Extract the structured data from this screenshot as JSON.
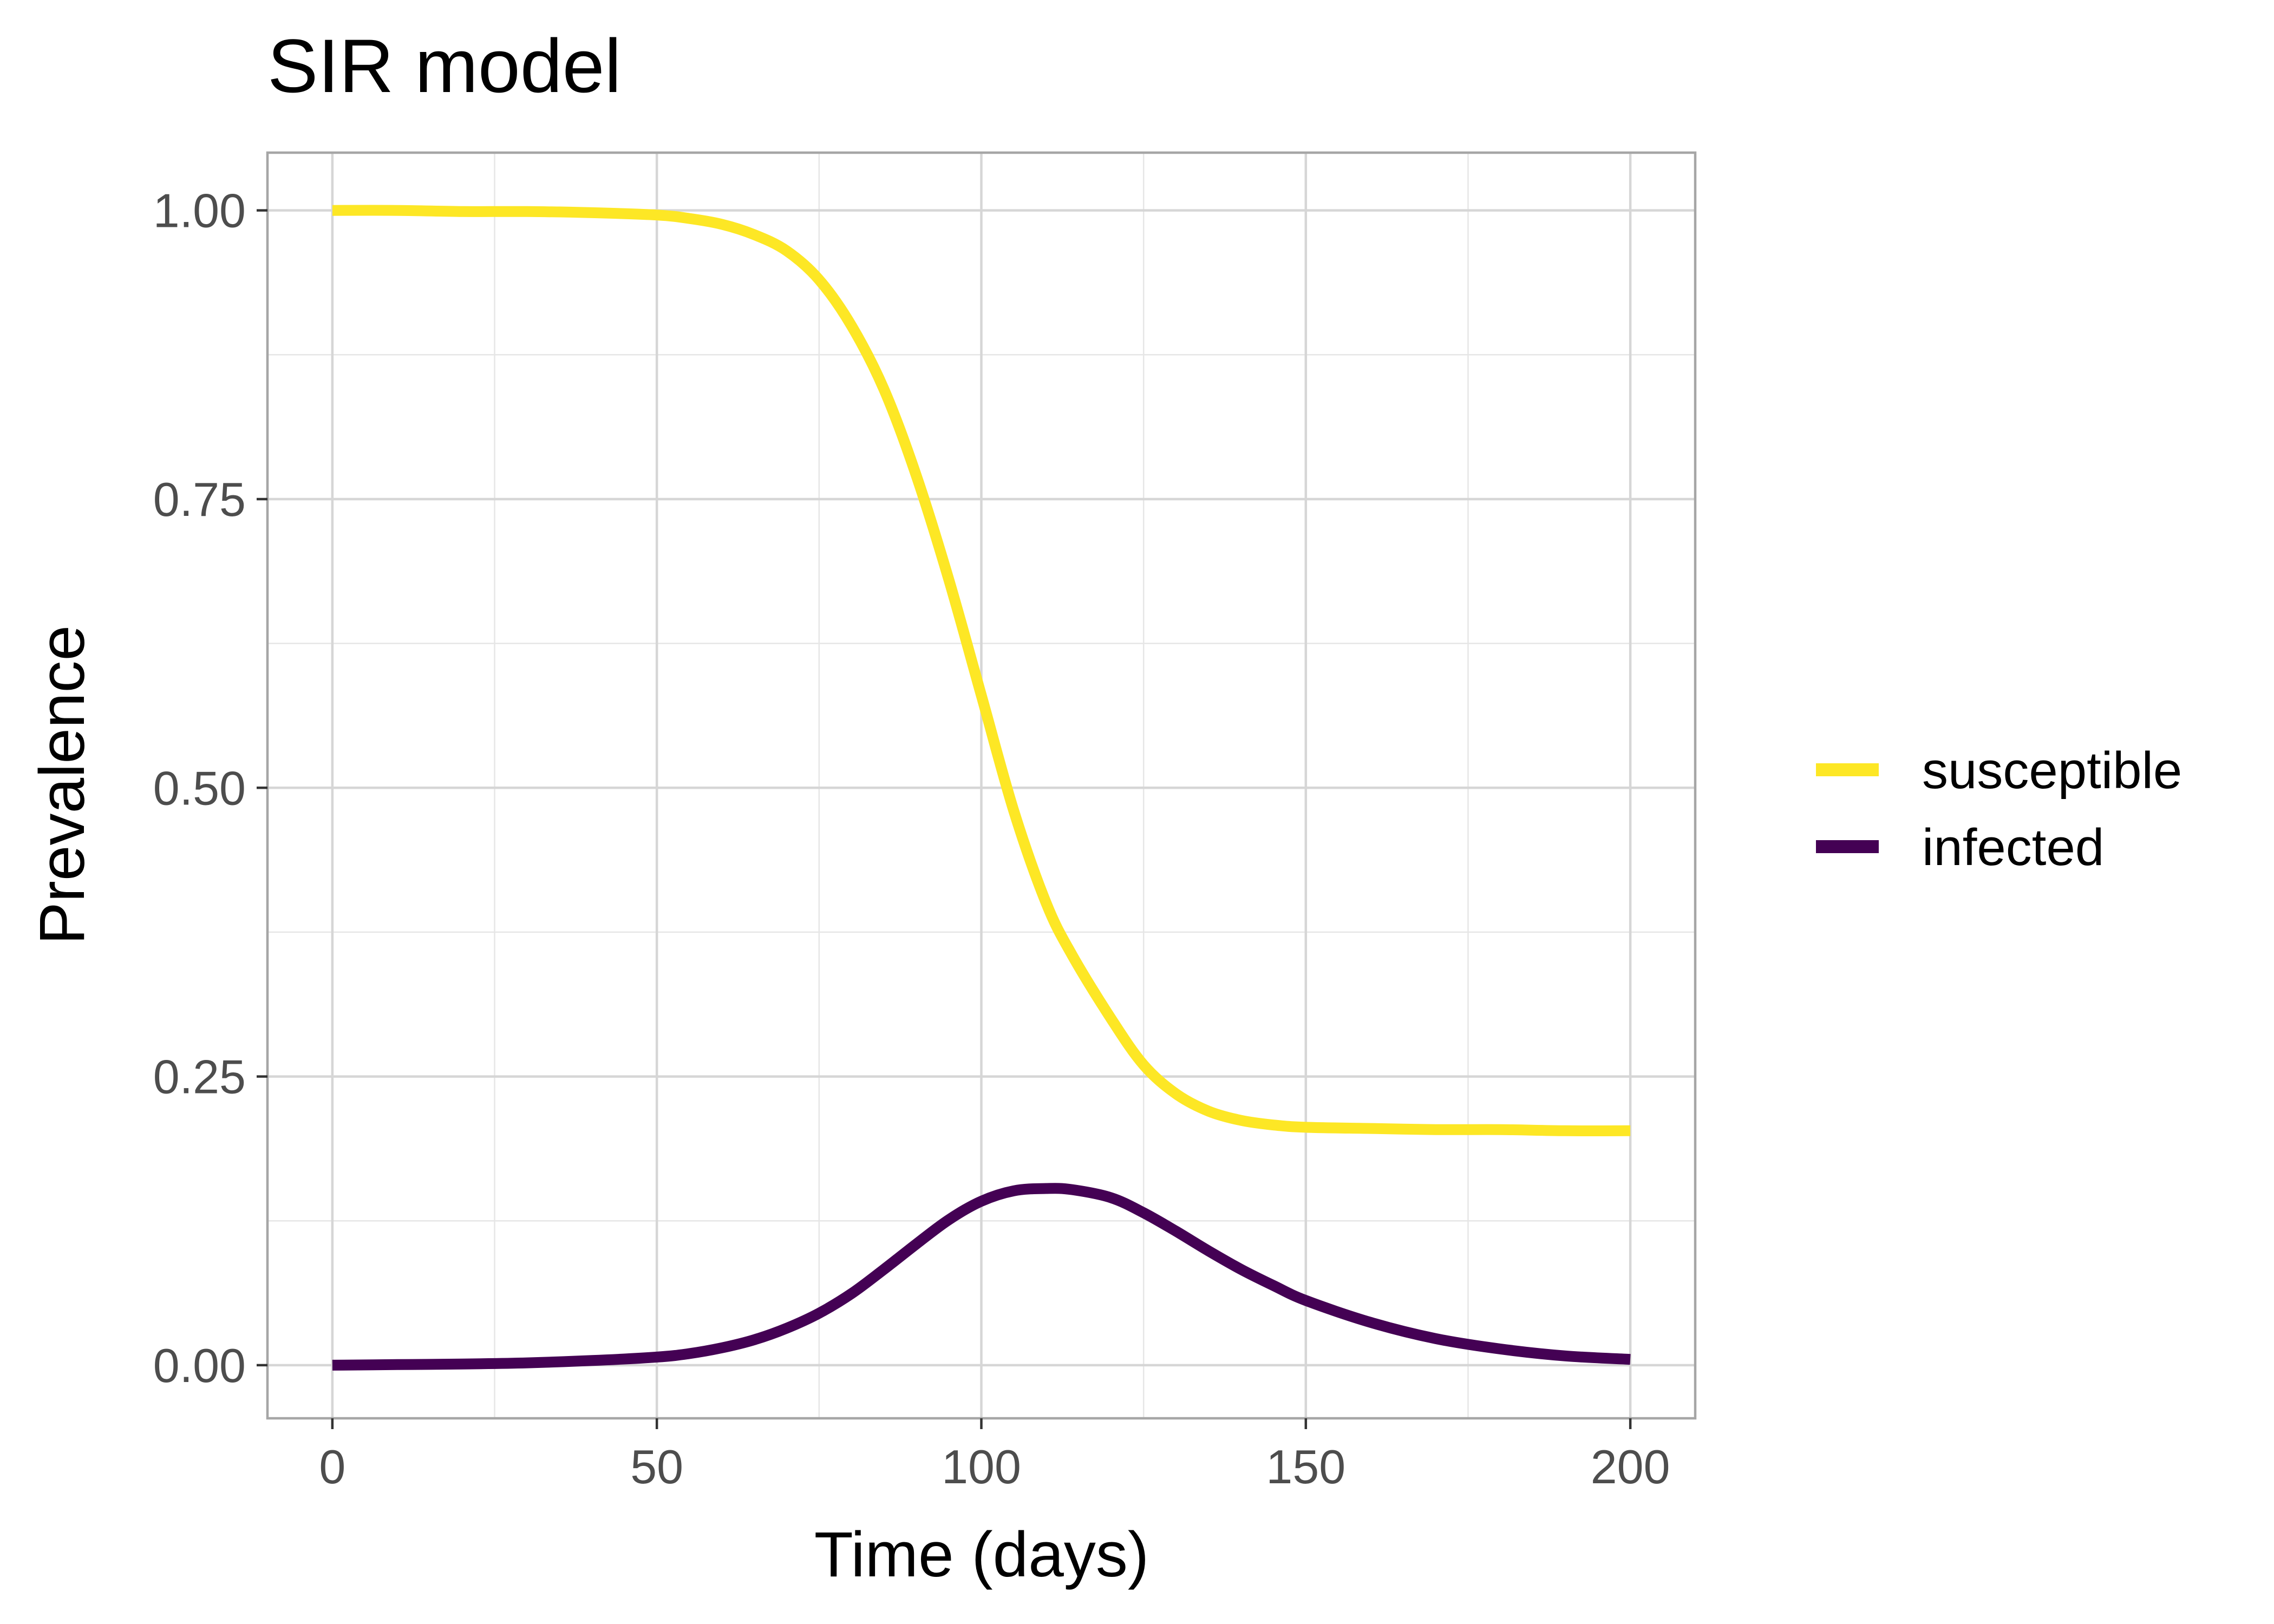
{
  "chart_data": {
    "type": "line",
    "title": "SIR model",
    "xlabel": "Time (days)",
    "ylabel": "Prevalence",
    "xlim": [
      -10,
      210
    ],
    "ylim": [
      -0.046,
      1.05
    ],
    "x_ticks": [
      0,
      50,
      100,
      150,
      200
    ],
    "x_tick_labels": [
      "0",
      "50",
      "100",
      "150",
      "200"
    ],
    "y_ticks": [
      0,
      0.25,
      0.5,
      0.75,
      1.0
    ],
    "y_tick_labels": [
      "0.00",
      "0.25",
      "0.50",
      "0.75",
      "1.00"
    ],
    "grid": true,
    "legend_position": "right",
    "x": [
      0,
      10,
      20,
      30,
      40,
      50,
      55,
      60,
      65,
      70,
      75,
      80,
      85,
      90,
      95,
      100,
      105,
      110,
      114,
      120,
      125,
      130,
      135,
      140,
      145,
      150,
      160,
      170,
      180,
      190,
      200
    ],
    "series": [
      {
        "name": "susceptible",
        "color": "#FDE725",
        "values": [
          1.0,
          1.0,
          0.999,
          0.999,
          0.998,
          0.996,
          0.993,
          0.988,
          0.979,
          0.965,
          0.94,
          0.9,
          0.845,
          0.77,
          0.68,
          0.58,
          0.48,
          0.4,
          0.355,
          0.3,
          0.26,
          0.235,
          0.22,
          0.212,
          0.208,
          0.206,
          0.205,
          0.204,
          0.204,
          0.203,
          0.203
        ],
        "values_check": null
      },
      {
        "name": "infected",
        "color": "#440154",
        "values": [
          0.0,
          0.0005,
          0.001,
          0.002,
          0.004,
          0.007,
          0.01,
          0.015,
          0.022,
          0.032,
          0.045,
          0.062,
          0.083,
          0.105,
          0.126,
          0.142,
          0.151,
          0.153,
          0.152,
          0.145,
          0.132,
          0.116,
          0.099,
          0.083,
          0.069,
          0.056,
          0.037,
          0.023,
          0.014,
          0.008,
          0.005
        ]
      }
    ]
  }
}
